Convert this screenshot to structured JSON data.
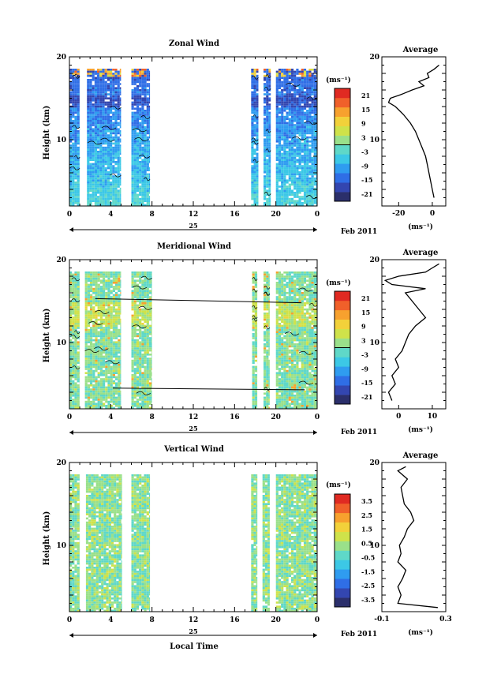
{
  "colors": {
    "scale": [
      "#2b2f6b",
      "#3346b0",
      "#2f6ee6",
      "#2f9cf0",
      "#3cc8e6",
      "#5fd8c8",
      "#9ae08a",
      "#cfe24a",
      "#f2d13a",
      "#f7a12e",
      "#f0602a",
      "#e02a22"
    ],
    "blank": "#ffffff",
    "contour": "#000000"
  },
  "chart_data": [
    {
      "type": "heatmap",
      "title": "Zonal Wind",
      "ylabel": "Height (km)",
      "ylim": [
        2,
        20
      ],
      "xlim": [
        0,
        24
      ],
      "x_ticks": [
        "0",
        "4",
        "8",
        "12",
        "16",
        "20",
        "0"
      ],
      "y_ticks": [
        "10",
        "20"
      ],
      "date_center": "25",
      "date_label": "Feb 2011",
      "data_columns_hours": [
        [
          0,
          1
        ],
        [
          1.7,
          5
        ],
        [
          6,
          7.8
        ],
        [
          17.6,
          18.3
        ],
        [
          18.8,
          19.5
        ],
        [
          20,
          24
        ]
      ],
      "colorbar": {
        "unit": "(ms⁻¹)",
        "ticks": [
          "21",
          "15",
          "9",
          "3",
          "-3",
          "-9",
          "-15",
          "-21"
        ],
        "range": [
          -24,
          24
        ]
      },
      "average": {
        "title": "Average",
        "xlabel": "(ms⁻¹)",
        "x_ticks": [
          "-20",
          "0"
        ],
        "xlim": [
          -30,
          8
        ],
        "y_ticks": [
          "10",
          "20"
        ],
        "heights": [
          3,
          4,
          5,
          6,
          7,
          8,
          9,
          10,
          11,
          12,
          13,
          14,
          14.5,
          15,
          15.5,
          16,
          16.5,
          17,
          17.5,
          18,
          18.5,
          19
        ],
        "values": [
          1,
          0,
          -1,
          -2,
          -3,
          -4,
          -6,
          -8,
          -10,
          -13,
          -17,
          -22,
          -26,
          -25,
          -18,
          -12,
          -5,
          -8,
          -2,
          -3,
          1,
          4
        ]
      }
    },
    {
      "type": "heatmap",
      "title": "Meridional Wind",
      "ylabel": "Height (km)",
      "ylim": [
        2,
        20
      ],
      "xlim": [
        0,
        24
      ],
      "x_ticks": [
        "0",
        "4",
        "8",
        "12",
        "16",
        "20",
        "0"
      ],
      "y_ticks": [
        "10",
        "20"
      ],
      "date_center": "25",
      "date_label": "Feb 2011",
      "data_columns_hours": [
        [
          0,
          1
        ],
        [
          1.5,
          5
        ],
        [
          6,
          8
        ],
        [
          17.7,
          18.2
        ],
        [
          18.8,
          19.4
        ],
        [
          20,
          24
        ]
      ],
      "colorbar": {
        "unit": "(ms⁻¹)",
        "ticks": [
          "21",
          "15",
          "9",
          "3",
          "-3",
          "-9",
          "-15",
          "-21"
        ],
        "range": [
          -24,
          24
        ]
      },
      "average": {
        "title": "Average",
        "xlabel": "(ms⁻¹)",
        "x_ticks": [
          "0",
          "10"
        ],
        "xlim": [
          -5,
          14
        ],
        "y_ticks": [
          "10",
          "20"
        ],
        "heights": [
          3,
          4,
          5,
          6,
          7,
          8,
          9,
          10,
          11,
          12,
          13,
          14,
          15,
          16,
          16.5,
          17,
          17.5,
          18,
          18.5,
          19,
          19.5
        ],
        "values": [
          -2,
          -3,
          -1,
          -2,
          0,
          -1,
          1,
          2,
          3,
          5,
          8,
          6,
          4,
          2,
          8,
          -2,
          -4,
          0,
          8,
          10,
          12
        ]
      }
    },
    {
      "type": "heatmap",
      "title": "Vertical Wind",
      "ylabel": "Height (km)",
      "xlabel": "Local Time",
      "ylim": [
        2,
        20
      ],
      "xlim": [
        0,
        24
      ],
      "x_ticks": [
        "0",
        "4",
        "8",
        "12",
        "16",
        "20",
        "0"
      ],
      "y_ticks": [
        "10",
        "20"
      ],
      "date_center": "25",
      "date_label": "Feb 2011",
      "data_columns_hours": [
        [
          0,
          1
        ],
        [
          1.6,
          5.1
        ],
        [
          6,
          7.8
        ],
        [
          17.6,
          18.2
        ],
        [
          18.7,
          19.4
        ],
        [
          20,
          24
        ]
      ],
      "colorbar": {
        "unit": "(ms⁻¹)",
        "ticks": [
          "3.5",
          "2.5",
          "1.5",
          "0.5",
          "-0.5",
          "-1.5",
          "-2.5",
          "-3.5"
        ],
        "range": [
          -4,
          4
        ]
      },
      "average": {
        "title": "Average",
        "xlabel": "(ms⁻¹)",
        "x_ticks": [
          "-0.1",
          "0.3"
        ],
        "xlim": [
          -0.1,
          0.3
        ],
        "y_ticks": [
          "10",
          "20"
        ],
        "heights": [
          2.5,
          3,
          4,
          5,
          6,
          7,
          8,
          9,
          10,
          11,
          12,
          13,
          14,
          15,
          16,
          17,
          18,
          19,
          19.5
        ],
        "values": [
          0.25,
          0,
          0.02,
          0,
          0.03,
          0.05,
          0,
          0.02,
          0.01,
          0.04,
          0.06,
          0.1,
          0.08,
          0.04,
          0.03,
          0.02,
          0.06,
          0,
          0.05
        ]
      }
    }
  ]
}
